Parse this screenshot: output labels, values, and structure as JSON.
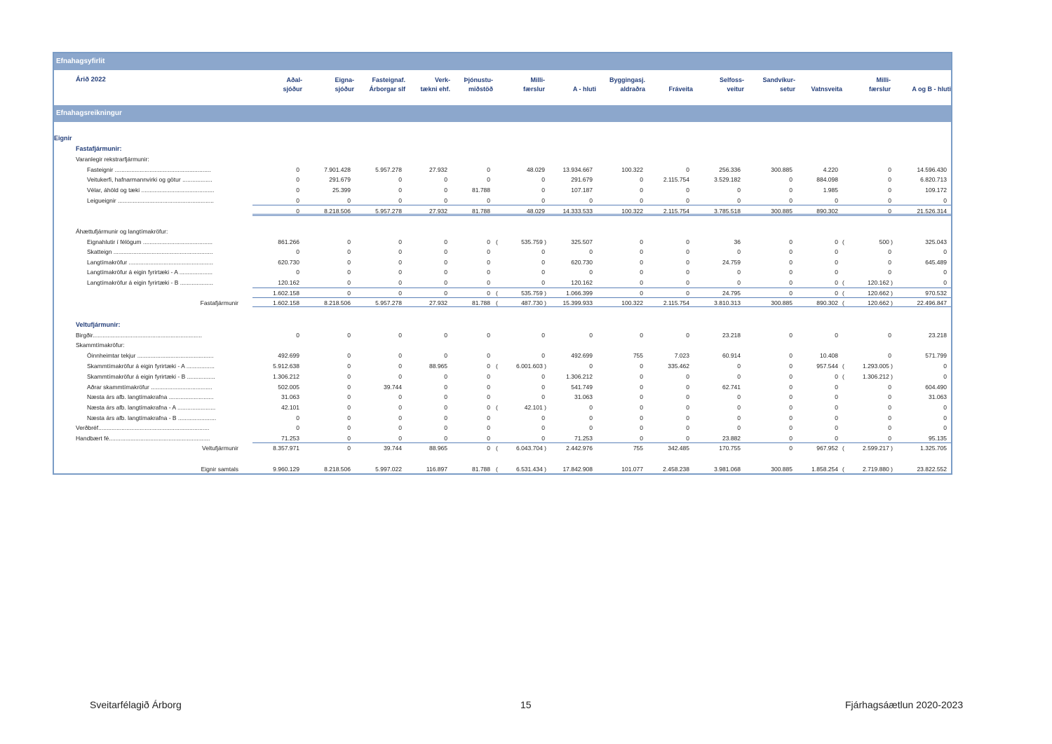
{
  "title": "Efnahagsyfirlit",
  "year_label": "Árið 2022",
  "section_title": "Efnahagsreikningur",
  "columns": [
    [
      "Aðal-",
      "sjóður"
    ],
    [
      "Eigna-",
      "sjóður"
    ],
    [
      "Fasteignaf.",
      "Árborgar slf"
    ],
    [
      "Verk-",
      "tækni ehf."
    ],
    [
      "Þjónustu-",
      "miðstöð"
    ],
    [
      "Milli-",
      "færslur"
    ],
    [
      "",
      "A - hluti"
    ],
    [
      "Byggingasj.",
      "aldraðra"
    ],
    [
      "",
      "Fráveita"
    ],
    [
      "Selfoss-",
      "veitur"
    ],
    [
      "Sandvíkur-",
      "setur"
    ],
    [
      "",
      "Vatnsveita"
    ],
    [
      "Milli-",
      "færslur"
    ],
    [
      "",
      "A og B - hluti"
    ]
  ],
  "rows": [
    {
      "label": "Eignir",
      "style": "sec",
      "indent": 0,
      "top": 192
    },
    {
      "label": "Fastafjármunir:",
      "style": "sub",
      "indent": 1,
      "top": 207
    },
    {
      "label": "Varanlegir rekstrarfjármunir:",
      "style": "",
      "indent": 1,
      "top": 222
    },
    {
      "label": "Fasteignir ..........................................................",
      "indent": 2,
      "top": 237,
      "values": [
        "0",
        "7.901.428",
        "5.957.278",
        "27.932",
        "0",
        "48.029",
        "13.934.667",
        "100.322",
        "0",
        "256.336",
        "300.885",
        "4.220",
        "0",
        "14.596.430"
      ]
    },
    {
      "label": "Veitukerfi, hafnarmannvirki og götur ..................",
      "indent": 2,
      "top": 251,
      "values": [
        "0",
        "291.679",
        "0",
        "0",
        "0",
        "0",
        "291.679",
        "0",
        "2.115.754",
        "3.529.182",
        "0",
        "884.098",
        "0",
        "6.820.713"
      ]
    },
    {
      "label": "Vélar, áhöld og tæki ............................................",
      "indent": 2,
      "top": 266,
      "values": [
        "0",
        "25.399",
        "0",
        "0",
        "81.788",
        "0",
        "107.187",
        "0",
        "0",
        "0",
        "0",
        "1.985",
        "0",
        "109.172"
      ]
    },
    {
      "label": "Leigueignir ..........................................................",
      "indent": 2,
      "top": 281,
      "values": [
        "0",
        "0",
        "0",
        "0",
        "0",
        "0",
        "0",
        "0",
        "0",
        "0",
        "0",
        "0",
        "0",
        "0"
      ]
    },
    {
      "label": "",
      "indent": 2,
      "top": 296,
      "values": [
        "0",
        "8.218.506",
        "5.957.278",
        "27.932",
        "81.788",
        "48.029",
        "14.333.533",
        "100.322",
        "2.115.754",
        "3.785.518",
        "300.885",
        "890.302",
        "0",
        "21.526.314"
      ]
    },
    {
      "label": "Áhættufjármunir og langtímakröfur:",
      "indent": 1,
      "top": 325
    },
    {
      "label": "Eignahlutir í félögum ..........................................",
      "indent": 2,
      "top": 340,
      "values": [
        "861.266",
        "0",
        "0",
        "0",
        "0",
        "535.759",
        "325.507",
        "0",
        "0",
        "36",
        "0",
        "0",
        "500",
        "325.043"
      ],
      "neg": [
        5,
        12
      ]
    },
    {
      "label": "Skatteign ............................................................",
      "indent": 2,
      "top": 354,
      "values": [
        "0",
        "0",
        "0",
        "0",
        "0",
        "0",
        "0",
        "0",
        "0",
        "0",
        "0",
        "0",
        "0",
        "0"
      ]
    },
    {
      "label": "Langtímakröfur ...................................................",
      "indent": 2,
      "top": 369,
      "values": [
        "620.730",
        "0",
        "0",
        "0",
        "0",
        "0",
        "620.730",
        "0",
        "0",
        "24.759",
        "0",
        "0",
        "0",
        "645.489"
      ]
    },
    {
      "label": "Langtímakröfur á eigin fyrirtæki - A ....................",
      "indent": 2,
      "top": 383,
      "values": [
        "0",
        "0",
        "0",
        "0",
        "0",
        "0",
        "0",
        "0",
        "0",
        "0",
        "0",
        "0",
        "0",
        "0"
      ]
    },
    {
      "label": "Langtímakröfur á eigin fyrirtæki - B ....................",
      "indent": 2,
      "top": 398,
      "values": [
        "120.162",
        "0",
        "0",
        "0",
        "0",
        "0",
        "120.162",
        "0",
        "0",
        "0",
        "0",
        "0",
        "120.162",
        "0"
      ],
      "neg": [
        12
      ]
    },
    {
      "label": "",
      "indent": 2,
      "top": 413,
      "values": [
        "1.602.158",
        "0",
        "0",
        "0",
        "0",
        "535.759",
        "1.066.399",
        "0",
        "0",
        "24.795",
        "0",
        "0",
        "120.662",
        "970.532"
      ],
      "neg": [
        5,
        12
      ]
    },
    {
      "label": "Fastafjármunir",
      "style": "tot",
      "top": 427,
      "values": [
        "1.602.158",
        "8.218.506",
        "5.957.278",
        "27.932",
        "81.788",
        "487.730",
        "15.399.933",
        "100.322",
        "2.115.754",
        "3.810.313",
        "300.885",
        "890.302",
        "120.662",
        "22.496.847"
      ],
      "neg": [
        5,
        12
      ]
    },
    {
      "label": "Veltufjármunir:",
      "style": "sub",
      "indent": 1,
      "top": 458
    },
    {
      "label": "Birgðir..................................................................",
      "indent": 1,
      "top": 473,
      "values": [
        "0",
        "0",
        "0",
        "0",
        "0",
        "0",
        "0",
        "0",
        "0",
        "23.218",
        "0",
        "0",
        "0",
        "23.218"
      ]
    },
    {
      "label": "Skammtímakröfur:",
      "indent": 1,
      "top": 487
    },
    {
      "label": "Óinnheimtar tekjur ..............................................",
      "indent": 2,
      "top": 502,
      "values": [
        "492.699",
        "0",
        "0",
        "0",
        "0",
        "0",
        "492.699",
        "755",
        "7.023",
        "60.914",
        "0",
        "10.408",
        "0",
        "571.799"
      ]
    },
    {
      "label": "Skammtímakröfur á eigin fyrirtæki - A .................",
      "indent": 2,
      "top": 517,
      "values": [
        "5.912.638",
        "0",
        "0",
        "88.965",
        "0",
        "6.001.603",
        "0",
        "0",
        "335.462",
        "0",
        "0",
        "957.544",
        "1.293.005",
        "0"
      ],
      "neg": [
        5,
        12
      ]
    },
    {
      "label": "Skammtímakröfur á eigin fyrirtæki - B .................",
      "indent": 2,
      "top": 532,
      "values": [
        "1.306.212",
        "0",
        "0",
        "0",
        "0",
        "0",
        "1.306.212",
        "0",
        "0",
        "0",
        "0",
        "0",
        "1.306.212",
        "0"
      ],
      "neg": [
        12
      ]
    },
    {
      "label": "Aðrar skammtímakröfur .....................................",
      "indent": 2,
      "top": 547,
      "values": [
        "502.005",
        "0",
        "39.744",
        "0",
        "0",
        "0",
        "541.749",
        "0",
        "0",
        "62.741",
        "0",
        "0",
        "0",
        "604.490"
      ]
    },
    {
      "label": "Næsta árs afb. langtímakrafna ...........................",
      "indent": 2,
      "top": 561,
      "values": [
        "31.063",
        "0",
        "0",
        "0",
        "0",
        "0",
        "31.063",
        "0",
        "0",
        "0",
        "0",
        "0",
        "0",
        "31.063"
      ]
    },
    {
      "label": "Næsta árs afb. langtímakrafna - A .......................",
      "indent": 2,
      "top": 576,
      "values": [
        "42.101",
        "0",
        "0",
        "0",
        "0",
        "42.101",
        "0",
        "0",
        "0",
        "0",
        "0",
        "0",
        "0",
        "0"
      ],
      "neg": [
        5
      ]
    },
    {
      "label": "Næsta árs afb. langtímakrafna - B .......................",
      "indent": 2,
      "top": 591,
      "values": [
        "0",
        "0",
        "0",
        "0",
        "0",
        "0",
        "0",
        "0",
        "0",
        "0",
        "0",
        "0",
        "0",
        "0"
      ]
    },
    {
      "label": "Verðbréf...................................................................",
      "indent": 1,
      "top": 605,
      "values": [
        "0",
        "0",
        "0",
        "0",
        "0",
        "0",
        "0",
        "0",
        "0",
        "0",
        "0",
        "0",
        "0",
        "0"
      ]
    },
    {
      "label": "Handbært fé.............................................................",
      "indent": 1,
      "top": 620,
      "values": [
        "71.253",
        "0",
        "0",
        "0",
        "0",
        "0",
        "71.253",
        "0",
        "0",
        "23.882",
        "0",
        "0",
        "0",
        "95.135"
      ]
    },
    {
      "label": "Veltufjármunir",
      "style": "tot",
      "top": 634,
      "values": [
        "8.357.971",
        "0",
        "39.744",
        "88.965",
        "0",
        "6.043.704",
        "2.442.976",
        "755",
        "342.485",
        "170.755",
        "0",
        "967.952",
        "2.599.217",
        "1.325.705"
      ],
      "neg": [
        5,
        12
      ]
    },
    {
      "label": "Eignir samtals",
      "style": "tot",
      "top": 664,
      "values": [
        "9.960.129",
        "8.218.506",
        "5.997.022",
        "116.897",
        "81.788",
        "6.531.434",
        "17.842.908",
        "101.077",
        "2.458.238",
        "3.981.068",
        "300.885",
        "1.858.254",
        "2.719.880",
        "23.822.552"
      ],
      "neg": [
        5,
        12
      ]
    }
  ],
  "footer": {
    "left": "Sveitarfélagið Árborg",
    "center": "15",
    "right": "Fjárhagsáætlun 2020-2023"
  }
}
